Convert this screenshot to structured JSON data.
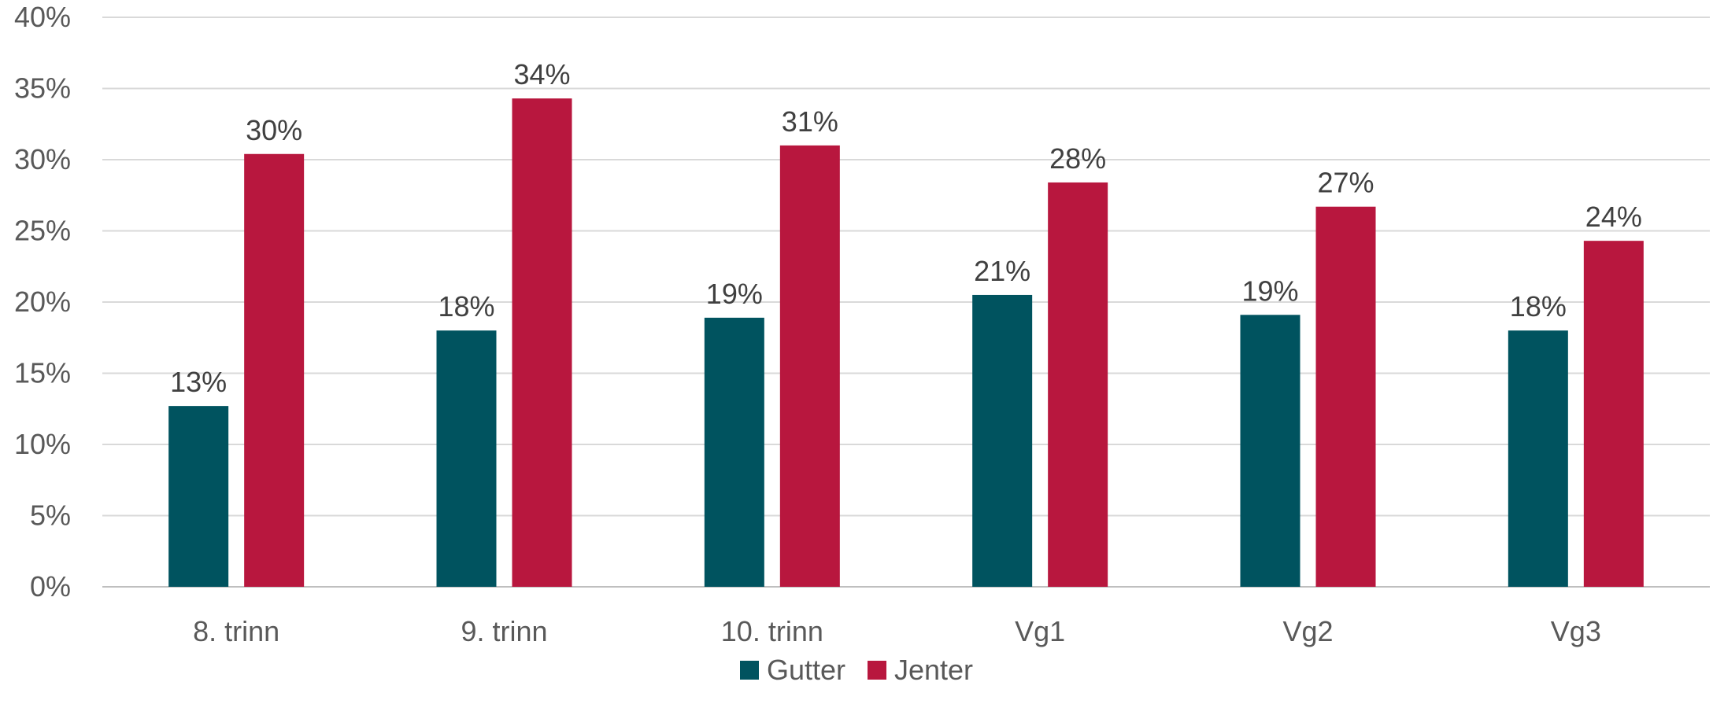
{
  "chart_data": {
    "type": "bar",
    "categories": [
      "8. trinn",
      "9. trinn",
      "10. trinn",
      "Vg1",
      "Vg2",
      "Vg3"
    ],
    "series": [
      {
        "name": "Gutter",
        "values": [
          12.7,
          18.0,
          18.9,
          20.5,
          19.1,
          18.0
        ],
        "labels": [
          "13%",
          "18%",
          "19%",
          "21%",
          "19%",
          "18%"
        ],
        "color": "#00535f"
      },
      {
        "name": "Jenter",
        "values": [
          30.4,
          34.3,
          31.0,
          28.4,
          26.7,
          24.3
        ],
        "labels": [
          "30%",
          "34%",
          "31%",
          "28%",
          "27%",
          "24%"
        ],
        "color": "#b8173e"
      }
    ],
    "yticks": [
      "0%",
      "5%",
      "10%",
      "15%",
      "20%",
      "25%",
      "30%",
      "35%",
      "40%"
    ],
    "ylim": [
      0,
      40
    ],
    "grid": true,
    "legend_position": "bottom",
    "title": "",
    "xlabel": "",
    "ylabel": ""
  }
}
